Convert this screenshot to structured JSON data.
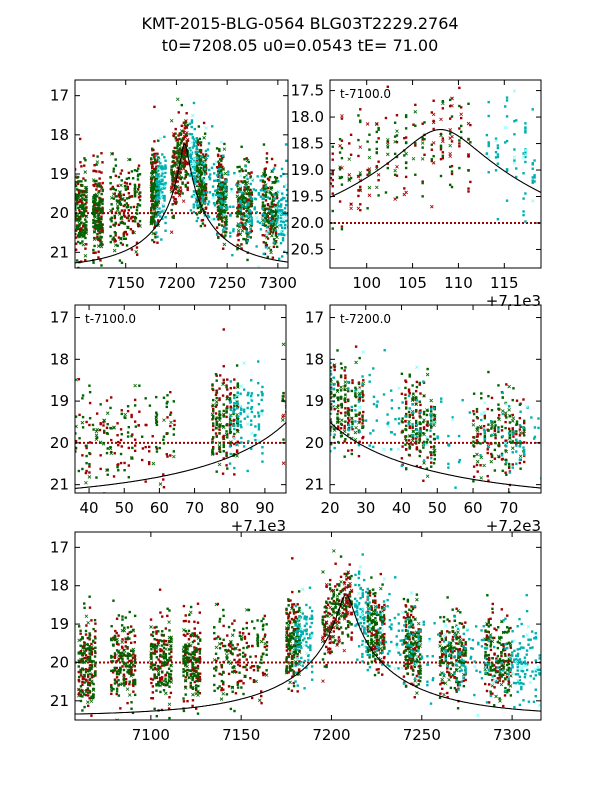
{
  "title_line1": "KMT-2015-BLG-0564 BLG03T2229.2764",
  "title_line2": "t0=7208.05 u0=0.0543 tE=  71.00",
  "colors": {
    "red": "#a00000",
    "green": "#006400",
    "cyan": "#00b0b0",
    "light_cyan": "#80ffff",
    "model": "#000000"
  },
  "chart_data": [
    {
      "type": "scatter",
      "panel": "full-top-left",
      "xlim": [
        7100,
        7310
      ],
      "ylim": [
        21.4,
        16.6
      ],
      "xticks": [
        7150,
        7200,
        7250,
        7300
      ],
      "xtick_labels": [
        "7150",
        "7200",
        "7250",
        "7300"
      ],
      "yticks": [
        17,
        18,
        19,
        20,
        21
      ],
      "ytick_labels": [
        "17",
        "18",
        "19",
        "20",
        "21"
      ],
      "annotation": "",
      "offset_text": ""
    },
    {
      "type": "scatter",
      "panel": "zoom-top-right",
      "xlim": [
        96,
        119
      ],
      "ylim": [
        20.85,
        17.3
      ],
      "xticks": [
        100,
        105,
        110,
        115
      ],
      "xtick_labels": [
        "100",
        "105",
        "110",
        "115"
      ],
      "yticks": [
        17.5,
        18,
        18.5,
        19,
        19.5,
        20,
        20.5
      ],
      "ytick_labels": [
        "17.5",
        "18.0",
        "18.5",
        "19.0",
        "19.5",
        "20.0",
        "20.5"
      ],
      "annotation": "t-7100.0",
      "offset_text": "+7.1e3"
    },
    {
      "type": "scatter",
      "panel": "zoom-middle-left",
      "xlim": [
        36,
        96
      ],
      "ylim": [
        21.2,
        16.7
      ],
      "xticks": [
        40,
        50,
        60,
        70,
        80,
        90
      ],
      "xtick_labels": [
        "40",
        "50",
        "60",
        "70",
        "80",
        "90"
      ],
      "yticks": [
        17,
        18,
        19,
        20,
        21
      ],
      "ytick_labels": [
        "17",
        "18",
        "19",
        "20",
        "21"
      ],
      "annotation": "t-7100.0",
      "offset_text": "+7.1e3"
    },
    {
      "type": "scatter",
      "panel": "zoom-middle-right",
      "xlim": [
        20,
        79
      ],
      "ylim": [
        21.2,
        16.7
      ],
      "xticks": [
        20,
        30,
        40,
        50,
        60,
        70
      ],
      "xtick_labels": [
        "20",
        "30",
        "40",
        "50",
        "60",
        "70"
      ],
      "yticks": [
        17,
        18,
        19,
        20,
        21
      ],
      "ytick_labels": [
        "17",
        "18",
        "19",
        "20",
        "21"
      ],
      "annotation": "t-7200.0",
      "offset_text": "+7.2e3"
    },
    {
      "type": "scatter",
      "panel": "full-bottom",
      "xlim": [
        7058,
        7316
      ],
      "ylim": [
        21.5,
        16.6
      ],
      "xticks": [
        7100,
        7150,
        7200,
        7250,
        7300
      ],
      "xtick_labels": [
        "7100",
        "7150",
        "7200",
        "7250",
        "7300"
      ],
      "yticks": [
        17,
        18,
        19,
        20,
        21
      ],
      "ytick_labels": [
        "17",
        "18",
        "19",
        "20",
        "21"
      ],
      "annotation": "",
      "offset_text": ""
    }
  ],
  "model": {
    "t0": 7208.05,
    "u0": 0.0543,
    "tE": 71.0,
    "baseline": 21.4
  }
}
